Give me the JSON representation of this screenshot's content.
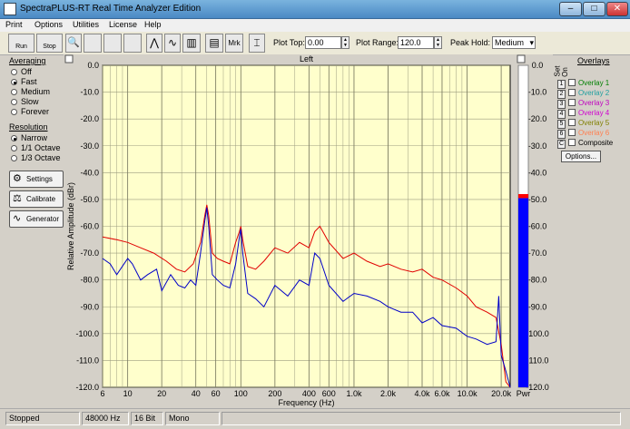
{
  "window": {
    "title": "SpectraPLUS-RT Real Time Analyzer Edition",
    "minimize": "–",
    "maximize": "□",
    "close": "✕"
  },
  "menu": [
    "Print",
    "Options",
    "Utilities",
    "License",
    "Help"
  ],
  "toolbar": {
    "run": "Run",
    "stop": "Stop",
    "plot_top_label": "Plot Top:",
    "plot_top_value": "0.00",
    "plot_range_label": "Plot Range:",
    "plot_range_value": "120.0",
    "peak_hold_label": "Peak Hold:",
    "peak_hold_value": "Medium",
    "mrk": "Mrk"
  },
  "averaging": {
    "heading": "Averaging",
    "options": [
      "Off",
      "Fast",
      "Medium",
      "Slow",
      "Forever"
    ],
    "selected": "Fast"
  },
  "resolution": {
    "heading": "Resolution",
    "options": [
      "Narrow",
      "1/1 Octave",
      "1/3 Octave"
    ],
    "selected": "Narrow"
  },
  "buttons": {
    "settings": "Settings",
    "calibrate": "Calibrate",
    "generator": "Generator"
  },
  "overlays": {
    "heading": "Overlays",
    "set_label": "Set",
    "on_label": "On",
    "items": [
      {
        "key": "1",
        "label": "Overlay 1",
        "color": "#008000"
      },
      {
        "key": "2",
        "label": "Overlay 2",
        "color": "#20a0a0"
      },
      {
        "key": "3",
        "label": "Overlay 3",
        "color": "#c000c0"
      },
      {
        "key": "4",
        "label": "Overlay 4",
        "color": "#d000d0"
      },
      {
        "key": "5",
        "label": "Overlay 5",
        "color": "#808000"
      },
      {
        "key": "6",
        "label": "Overlay 6",
        "color": "#ff7f50"
      },
      {
        "key": "C",
        "label": "Composite",
        "color": "#000000"
      }
    ],
    "options_button": "Options..."
  },
  "status": {
    "state": "Stopped",
    "rate": "48000 Hz",
    "bits": "16 Bit",
    "channels": "Mono"
  },
  "chart_data": {
    "type": "line",
    "title": "Left",
    "xlabel": "Frequency (Hz)",
    "ylabel": "Relative Amplitude (dBr)",
    "xscale": "log",
    "xlim": [
      6,
      24000
    ],
    "ylim": [
      -120,
      0
    ],
    "xticks": [
      6,
      10,
      20,
      40,
      60,
      100,
      200,
      400,
      600,
      1000,
      2000,
      4000,
      6000,
      10000,
      20000
    ],
    "xtick_labels": [
      "6",
      "10",
      "20",
      "40",
      "60",
      "100",
      "200",
      "400",
      "600",
      "1.0k",
      "2.0k",
      "4.0k",
      "6.0k",
      "10.0k",
      "20.0k"
    ],
    "yticks": [
      0,
      -10,
      -20,
      -30,
      -40,
      -50,
      -60,
      -70,
      -80,
      -90,
      -100,
      -110,
      -120
    ],
    "ytick_labels": [
      "0.0",
      "-10.0",
      "-20.0",
      "-30.0",
      "-40.0",
      "-50.0",
      "-60.0",
      "-70.0",
      "-80.0",
      "-90.0",
      "-100.0",
      "-110.0",
      "-120.0"
    ],
    "grid": true,
    "series": [
      {
        "color": "#e00000",
        "x": [
          6,
          8,
          10,
          13,
          17,
          22,
          27,
          32,
          38,
          44,
          48,
          50,
          52,
          56,
          62,
          70,
          80,
          90,
          97,
          100,
          104,
          115,
          135,
          160,
          200,
          260,
          330,
          400,
          450,
          500,
          600,
          800,
          1000,
          1300,
          1700,
          2000,
          2600,
          3300,
          4000,
          5000,
          6000,
          8000,
          10000,
          12000,
          15000,
          18000,
          20000,
          22000,
          24000
        ],
        "y": [
          -64,
          -65,
          -66,
          -68,
          -70,
          -73,
          -76,
          -77,
          -74,
          -66,
          -56,
          -52,
          -56,
          -70,
          -72,
          -73,
          -74,
          -66,
          -62,
          -60,
          -65,
          -75,
          -76,
          -73,
          -68,
          -70,
          -66,
          -68,
          -62,
          -60,
          -66,
          -72,
          -70,
          -73,
          -75,
          -74,
          -76,
          -77,
          -76,
          -79,
          -80,
          -83,
          -86,
          -90,
          -92,
          -94,
          -104,
          -118,
          -120
        ]
      },
      {
        "color": "#0000c8",
        "x": [
          6,
          7,
          8,
          10,
          11,
          13,
          15,
          18,
          20,
          24,
          28,
          32,
          36,
          40,
          44,
          48,
          50,
          52,
          56,
          62,
          70,
          80,
          90,
          97,
          100,
          104,
          115,
          135,
          160,
          200,
          260,
          330,
          400,
          450,
          500,
          600,
          800,
          1000,
          1300,
          1700,
          2000,
          2600,
          3300,
          4000,
          5000,
          6000,
          8000,
          10000,
          12000,
          15000,
          18000,
          19000,
          20000,
          22000,
          24000
        ],
        "y": [
          -72,
          -74,
          -78,
          -72,
          -74,
          -80,
          -78,
          -76,
          -84,
          -78,
          -82,
          -83,
          -80,
          -82,
          -70,
          -58,
          -53,
          -60,
          -78,
          -80,
          -82,
          -83,
          -74,
          -64,
          -61,
          -70,
          -85,
          -87,
          -90,
          -82,
          -86,
          -80,
          -82,
          -70,
          -72,
          -82,
          -88,
          -85,
          -86,
          -88,
          -90,
          -92,
          -92,
          -96,
          -94,
          -97,
          -98,
          -101,
          -102,
          -104,
          -103,
          -86,
          -108,
          -114,
          -120
        ]
      }
    ],
    "level_meter": {
      "label": "Pwr",
      "level_db": -49.5,
      "peak_db": -48.0,
      "level_color": "#0000ff",
      "peak_color": "#ff0000"
    }
  }
}
